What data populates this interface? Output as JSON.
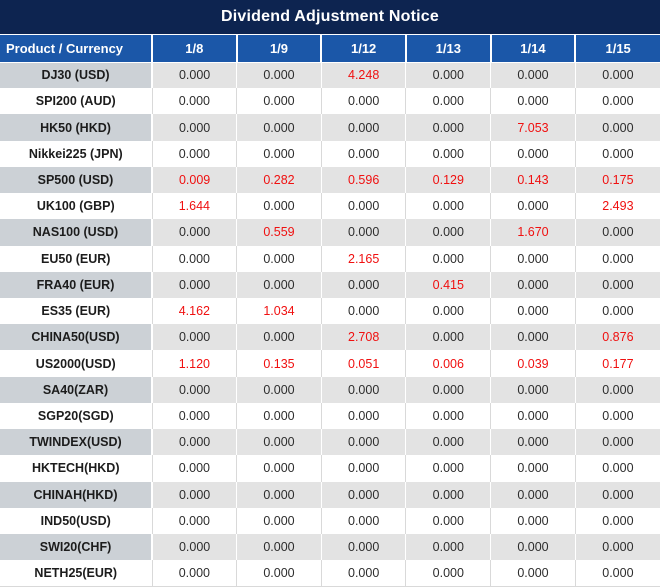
{
  "title": "Dividend Adjustment Notice",
  "colors": {
    "title_bg": "#0d2450",
    "header_bg": "#1b57a8",
    "alt_row_product_bg": "#ccd1d6",
    "alt_row_cell_bg": "#e3e3e3",
    "highlight_red": "#f01010",
    "value_text": "#2d2d2d",
    "header_text": "#ffffff"
  },
  "chart_data": {
    "type": "table",
    "title": "Dividend Adjustment Notice",
    "product_header": "Product / Currency",
    "date_headers": [
      "1/8",
      "1/9",
      "1/12",
      "1/13",
      "1/14",
      "1/15"
    ],
    "rows": [
      {
        "product": "DJ30 (USD)",
        "values": [
          "0.000",
          "0.000",
          "4.248",
          "0.000",
          "0.000",
          "0.000"
        ],
        "red": [
          false,
          false,
          true,
          false,
          false,
          false
        ]
      },
      {
        "product": "SPI200 (AUD)",
        "values": [
          "0.000",
          "0.000",
          "0.000",
          "0.000",
          "0.000",
          "0.000"
        ],
        "red": [
          false,
          false,
          false,
          false,
          false,
          false
        ]
      },
      {
        "product": "HK50 (HKD)",
        "values": [
          "0.000",
          "0.000",
          "0.000",
          "0.000",
          "7.053",
          "0.000"
        ],
        "red": [
          false,
          false,
          false,
          false,
          true,
          false
        ]
      },
      {
        "product": "Nikkei225 (JPN)",
        "values": [
          "0.000",
          "0.000",
          "0.000",
          "0.000",
          "0.000",
          "0.000"
        ],
        "red": [
          false,
          false,
          false,
          false,
          false,
          false
        ]
      },
      {
        "product": "SP500 (USD)",
        "values": [
          "0.009",
          "0.282",
          "0.596",
          "0.129",
          "0.143",
          "0.175"
        ],
        "red": [
          true,
          true,
          true,
          true,
          true,
          true
        ]
      },
      {
        "product": "UK100 (GBP)",
        "values": [
          "1.644",
          "0.000",
          "0.000",
          "0.000",
          "0.000",
          "2.493"
        ],
        "red": [
          true,
          false,
          false,
          false,
          false,
          true
        ]
      },
      {
        "product": "NAS100 (USD)",
        "values": [
          "0.000",
          "0.559",
          "0.000",
          "0.000",
          "1.670",
          "0.000"
        ],
        "red": [
          false,
          true,
          false,
          false,
          true,
          false
        ]
      },
      {
        "product": "EU50 (EUR)",
        "values": [
          "0.000",
          "0.000",
          "2.165",
          "0.000",
          "0.000",
          "0.000"
        ],
        "red": [
          false,
          false,
          true,
          false,
          false,
          false
        ]
      },
      {
        "product": "FRA40 (EUR)",
        "values": [
          "0.000",
          "0.000",
          "0.000",
          "0.415",
          "0.000",
          "0.000"
        ],
        "red": [
          false,
          false,
          false,
          true,
          false,
          false
        ]
      },
      {
        "product": "ES35 (EUR)",
        "values": [
          "4.162",
          "1.034",
          "0.000",
          "0.000",
          "0.000",
          "0.000"
        ],
        "red": [
          true,
          true,
          false,
          false,
          false,
          false
        ]
      },
      {
        "product": "CHINA50(USD)",
        "values": [
          "0.000",
          "0.000",
          "2.708",
          "0.000",
          "0.000",
          "0.876"
        ],
        "red": [
          false,
          false,
          true,
          false,
          false,
          true
        ]
      },
      {
        "product": "US2000(USD)",
        "values": [
          "1.120",
          "0.135",
          "0.051",
          "0.006",
          "0.039",
          "0.177"
        ],
        "red": [
          true,
          true,
          true,
          true,
          true,
          true
        ]
      },
      {
        "product": "SA40(ZAR)",
        "values": [
          "0.000",
          "0.000",
          "0.000",
          "0.000",
          "0.000",
          "0.000"
        ],
        "red": [
          false,
          false,
          false,
          false,
          false,
          false
        ]
      },
      {
        "product": "SGP20(SGD)",
        "values": [
          "0.000",
          "0.000",
          "0.000",
          "0.000",
          "0.000",
          "0.000"
        ],
        "red": [
          false,
          false,
          false,
          false,
          false,
          false
        ]
      },
      {
        "product": "TWINDEX(USD)",
        "values": [
          "0.000",
          "0.000",
          "0.000",
          "0.000",
          "0.000",
          "0.000"
        ],
        "red": [
          false,
          false,
          false,
          false,
          false,
          false
        ]
      },
      {
        "product": "HKTECH(HKD)",
        "values": [
          "0.000",
          "0.000",
          "0.000",
          "0.000",
          "0.000",
          "0.000"
        ],
        "red": [
          false,
          false,
          false,
          false,
          false,
          false
        ]
      },
      {
        "product": "CHINAH(HKD)",
        "values": [
          "0.000",
          "0.000",
          "0.000",
          "0.000",
          "0.000",
          "0.000"
        ],
        "red": [
          false,
          false,
          false,
          false,
          false,
          false
        ]
      },
      {
        "product": "IND50(USD)",
        "values": [
          "0.000",
          "0.000",
          "0.000",
          "0.000",
          "0.000",
          "0.000"
        ],
        "red": [
          false,
          false,
          false,
          false,
          false,
          false
        ]
      },
      {
        "product": "SWI20(CHF)",
        "values": [
          "0.000",
          "0.000",
          "0.000",
          "0.000",
          "0.000",
          "0.000"
        ],
        "red": [
          false,
          false,
          false,
          false,
          false,
          false
        ]
      },
      {
        "product": "NETH25(EUR)",
        "values": [
          "0.000",
          "0.000",
          "0.000",
          "0.000",
          "0.000",
          "0.000"
        ],
        "red": [
          false,
          false,
          false,
          false,
          false,
          false
        ]
      }
    ]
  }
}
